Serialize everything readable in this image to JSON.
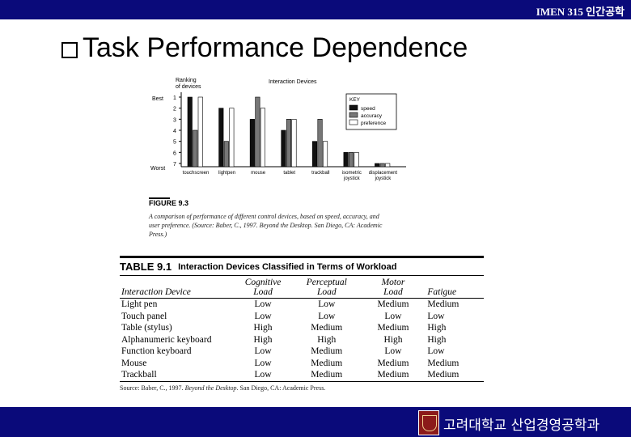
{
  "header": {
    "course": "IMEN 315 인간공학"
  },
  "slide": {
    "title": "Task Performance Dependence"
  },
  "figure": {
    "y_axis_label": [
      "Ranking",
      "of devices"
    ],
    "rank_best": "Best",
    "rank_worst": "Worst",
    "rank_ticks": [
      "1",
      "2",
      "3",
      "4",
      "5",
      "6",
      "7"
    ],
    "top_label": "Interaction Devices",
    "key": {
      "title": "KEY",
      "items": [
        "speed",
        "accuracy",
        "preference"
      ]
    },
    "caption_title": "FIGURE 9.3",
    "caption_text": "A comparison of performance of different control devices, based on speed, accuracy, and user preference. (Source: Baber, C., 1997. Beyond the Desktop. San Diego, CA: Academic Press.)"
  },
  "chart_data": {
    "type": "bar",
    "title": "Interaction Devices",
    "ylabel": "Ranking of devices",
    "y_scale": "ranking, 1 = Best (top), 7 = Worst (bottom)",
    "ylim": [
      1,
      7
    ],
    "categories": [
      "touchscreen",
      "lightpen",
      "mouse",
      "tablet",
      "trackball",
      "isometric joystick",
      "displacement joystick"
    ],
    "series": [
      {
        "name": "speed",
        "values": [
          1,
          2,
          3,
          4,
          5,
          6,
          7
        ]
      },
      {
        "name": "accuracy",
        "values": [
          4,
          5,
          1,
          3,
          3,
          6,
          7
        ]
      },
      {
        "name": "preference",
        "values": [
          1,
          2,
          2,
          3,
          5,
          6,
          7
        ]
      }
    ],
    "legend": "top-right"
  },
  "table": {
    "label": "TABLE 9.1",
    "title": "Interaction Devices Classified in Terms of Workload",
    "headers": [
      [
        "Interaction Device"
      ],
      [
        "Cognitive",
        "Load"
      ],
      [
        "Perceptual",
        "Load"
      ],
      [
        "Motor",
        "Load"
      ],
      [
        "Fatigue"
      ]
    ],
    "rows": [
      [
        "Light pen",
        "Low",
        "Low",
        "Medium",
        "Medium"
      ],
      [
        "Touch panel",
        "Low",
        "Low",
        "Low",
        "Low"
      ],
      [
        "Table (stylus)",
        "High",
        "Medium",
        "Medium",
        "High"
      ],
      [
        "Alphanumeric keyboard",
        "High",
        "High",
        "High",
        "High"
      ],
      [
        "Function keyboard",
        "Low",
        "Medium",
        "Low",
        "Low"
      ],
      [
        "Mouse",
        "Low",
        "Medium",
        "Medium",
        "Medium"
      ],
      [
        "Trackball",
        "Low",
        "Medium",
        "Medium",
        "Medium"
      ]
    ],
    "source_prefix": "Source: Baber, C., 1997. ",
    "source_book": "Beyond the Desktop",
    "source_suffix": ". San Diego, CA: Academic Press."
  },
  "footer": {
    "university": "고려대학교 산업경영공학과"
  },
  "colors": {
    "bar_navy": "#0a0a7a",
    "series_speed": "#111111",
    "series_accuracy": "#777777",
    "series_preference": "#ffffff"
  }
}
